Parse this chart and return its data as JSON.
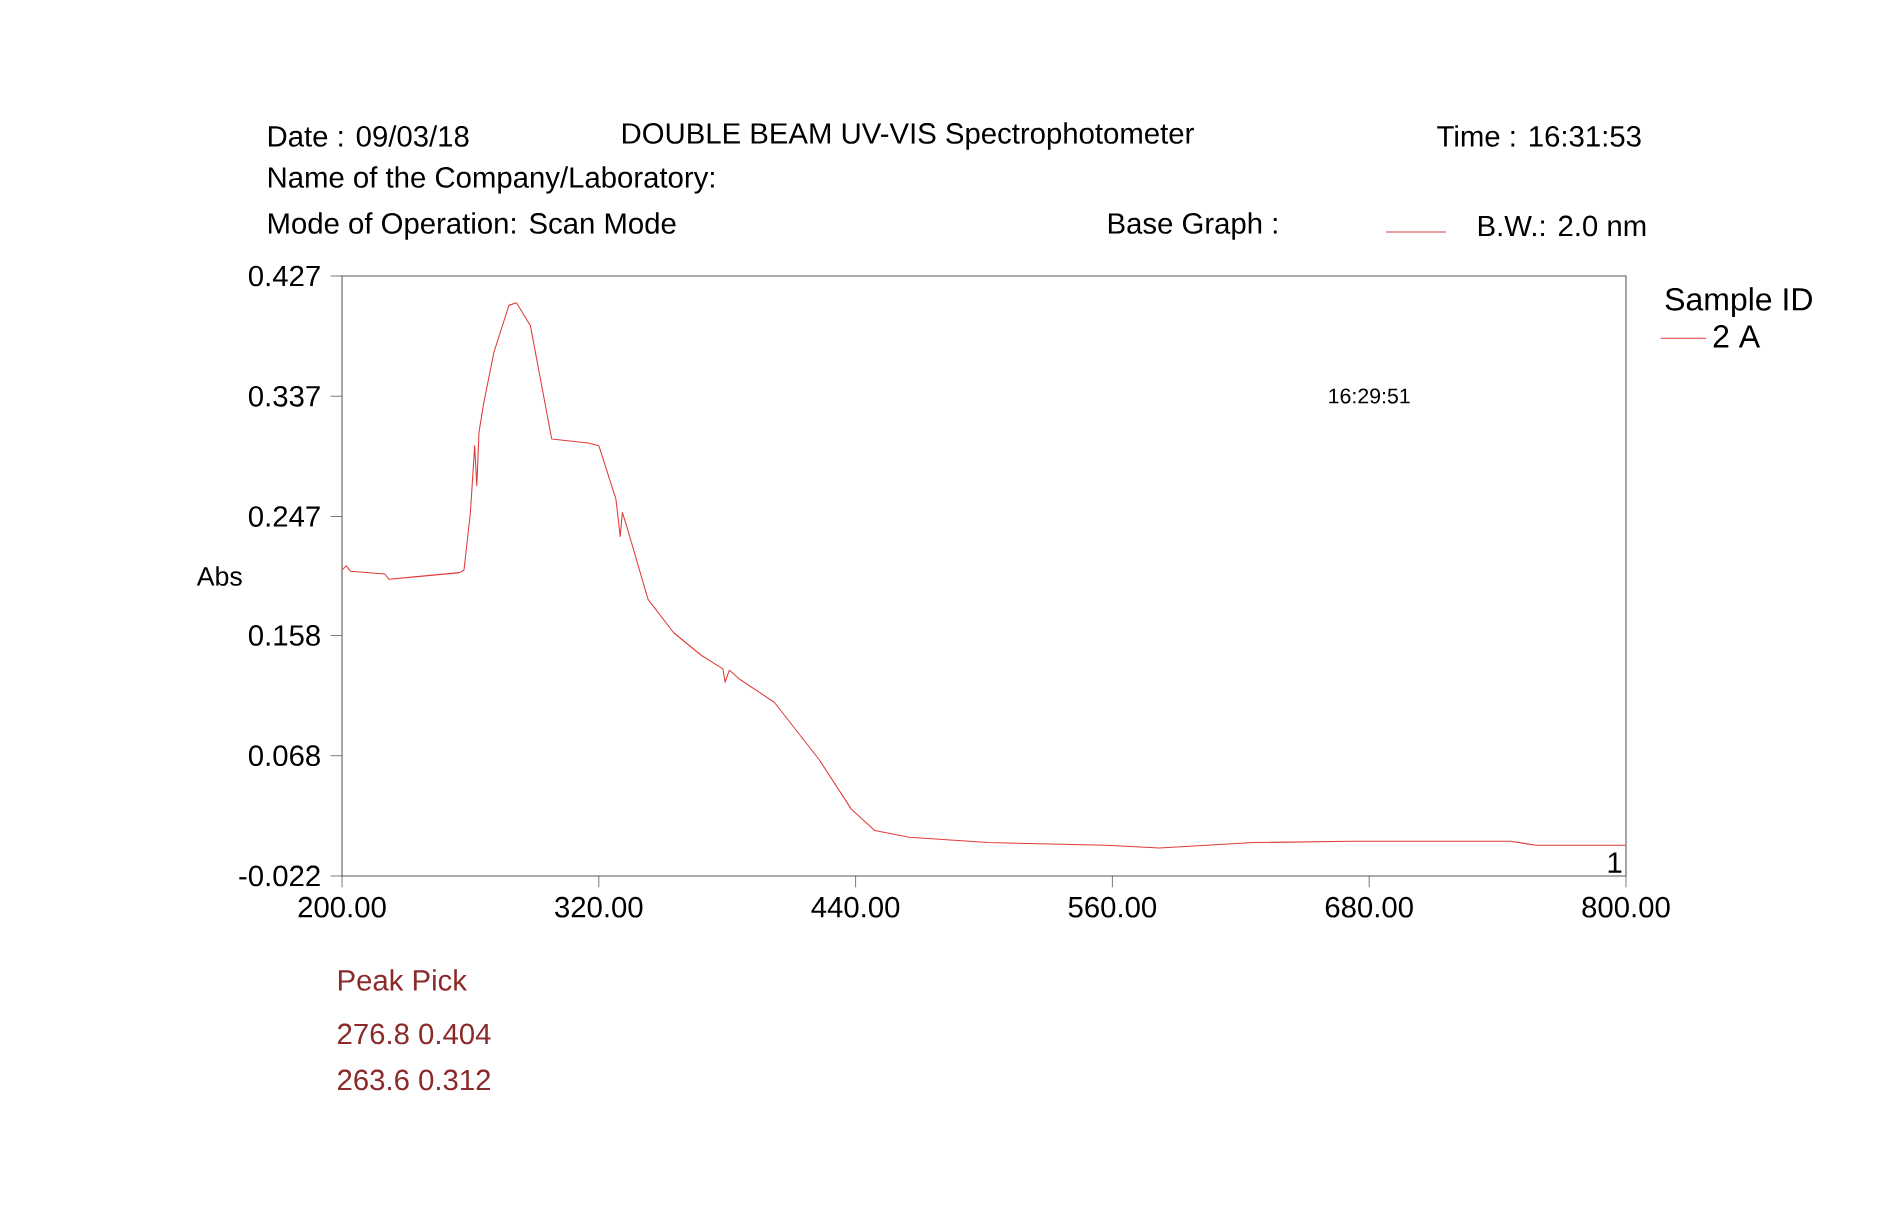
{
  "chart_data": {
    "type": "line",
    "annotations": [
      "Date : 09/03/18",
      "DOUBLE BEAM UV-VIS Spectrophotometer",
      "Time :  16:31:53",
      "Name of the Company/Laboratory:",
      "Mode of Operation:   Scan Mode",
      "Base Graph :",
      "B.W.: 2.0 nm",
      "16:29:51",
      "1",
      "Peak Pick",
      "276.8   0.404",
      "263.6   0.312"
    ],
    "ylabel": "Abs",
    "legend_title": "Sample ID",
    "legend": "top right",
    "xlim": [
      200,
      800
    ],
    "ylim": [
      -0.022,
      0.427
    ],
    "xticks": [
      {
        "value": 200,
        "label": "200.00"
      },
      {
        "value": 320,
        "label": "320.00"
      },
      {
        "value": 440,
        "label": "440.00"
      },
      {
        "value": 560,
        "label": "560.00"
      },
      {
        "value": 680,
        "label": "680.00"
      },
      {
        "value": 800,
        "label": "800.00"
      }
    ],
    "yticks": [
      -0.022,
      0.068,
      0.158,
      0.247,
      0.337,
      0.427
    ],
    "grid": false,
    "series": [
      {
        "name": "2 A",
        "color": "#e03c3c",
        "x": [
          200,
          202,
          204,
          220,
          222,
          235,
          255,
          257,
          260,
          262,
          263,
          264,
          266,
          271,
          278,
          281.5,
          288,
          298,
          315,
          320,
          328,
          330,
          331,
          333,
          343,
          355,
          368,
          378,
          379,
          381,
          386,
          402,
          423,
          438,
          449,
          465,
          502,
          557,
          582,
          626,
          672,
          746,
          758,
          800
        ],
        "values": [
          0.207,
          0.21,
          0.206,
          0.204,
          0.2,
          0.202,
          0.205,
          0.207,
          0.25,
          0.3,
          0.27,
          0.31,
          0.33,
          0.37,
          0.405,
          0.407,
          0.39,
          0.305,
          0.302,
          0.3,
          0.26,
          0.232,
          0.25,
          0.24,
          0.185,
          0.16,
          0.143,
          0.133,
          0.123,
          0.132,
          0.125,
          0.108,
          0.065,
          0.028,
          0.012,
          0.007,
          0.003,
          0.001,
          -0.001,
          0.003,
          0.004,
          0.004,
          0.001,
          0.001
        ]
      }
    ]
  }
}
